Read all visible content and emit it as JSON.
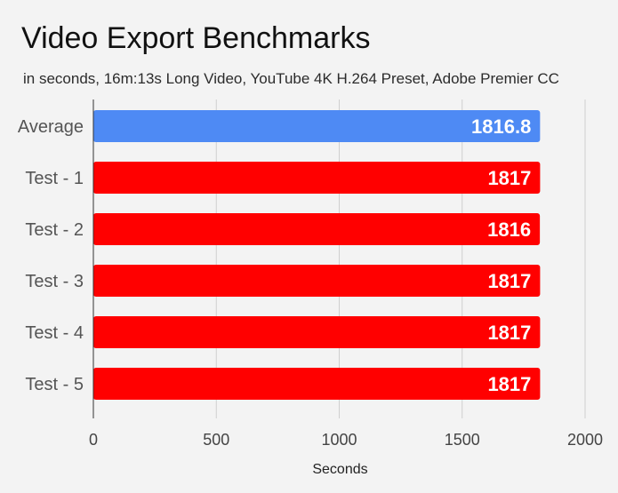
{
  "chart_data": {
    "type": "bar",
    "orientation": "horizontal",
    "title": "Video Export Benchmarks",
    "subtitle": "in seconds, 16m:13s Long Video, YouTube 4K H.264 Preset, Adobe Premier CC",
    "xlabel": "Seconds",
    "ylabel": "",
    "categories": [
      "Average",
      "Test - 1",
      "Test - 2",
      "Test - 3",
      "Test - 4",
      "Test - 5"
    ],
    "values": [
      1816.8,
      1817,
      1816,
      1817,
      1817,
      1817
    ],
    "data_labels": [
      "1816.8",
      "1817",
      "1816",
      "1817",
      "1817",
      "1817"
    ],
    "bar_colors": [
      "#4e8af4",
      "#ff0000",
      "#ff0000",
      "#ff0000",
      "#ff0000",
      "#ff0000"
    ],
    "xlim": [
      0,
      2000
    ],
    "xticks": [
      0,
      500,
      1000,
      1500,
      2000
    ],
    "grid": true,
    "legend": "none"
  }
}
